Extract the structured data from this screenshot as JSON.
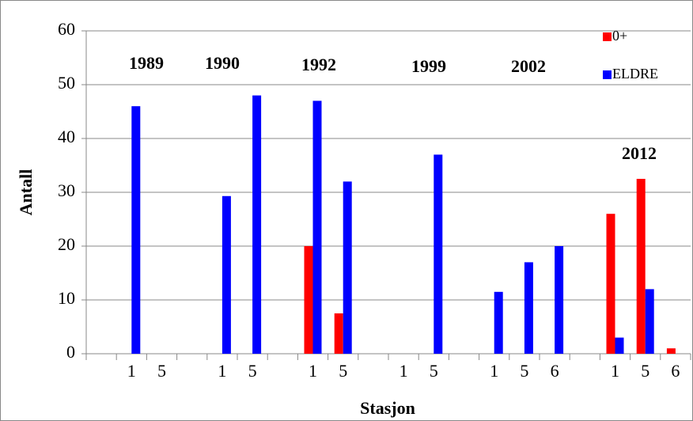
{
  "chart_data": {
    "type": "bar",
    "x_label": "Stasjon",
    "y_label": "Antall",
    "categories": [
      null,
      "1",
      "5",
      null,
      "1",
      "5",
      null,
      "1",
      "5",
      null,
      "1",
      "5",
      null,
      "1",
      "5",
      "6",
      null,
      "1",
      "5",
      "6"
    ],
    "series": [
      {
        "name": "0+",
        "color": "#ff0000",
        "values": [
          null,
          null,
          null,
          null,
          null,
          null,
          null,
          20,
          7.5,
          null,
          null,
          null,
          null,
          null,
          null,
          null,
          null,
          26,
          32.5,
          1
        ]
      },
      {
        "name": "ELDRE",
        "color": "#0000ff",
        "values": [
          null,
          46,
          null,
          null,
          29.3,
          48,
          null,
          47,
          32,
          null,
          null,
          37,
          null,
          11.5,
          17,
          20,
          null,
          3,
          12,
          null
        ]
      }
    ],
    "annotations": [
      "1989",
      "1990",
      "1992",
      "1999",
      "2002",
      "2012"
    ],
    "ylim": [
      0,
      60
    ],
    "yticks": [
      0,
      10,
      20,
      30,
      40,
      50,
      60
    ],
    "grid": true,
    "legend": "top-right"
  }
}
